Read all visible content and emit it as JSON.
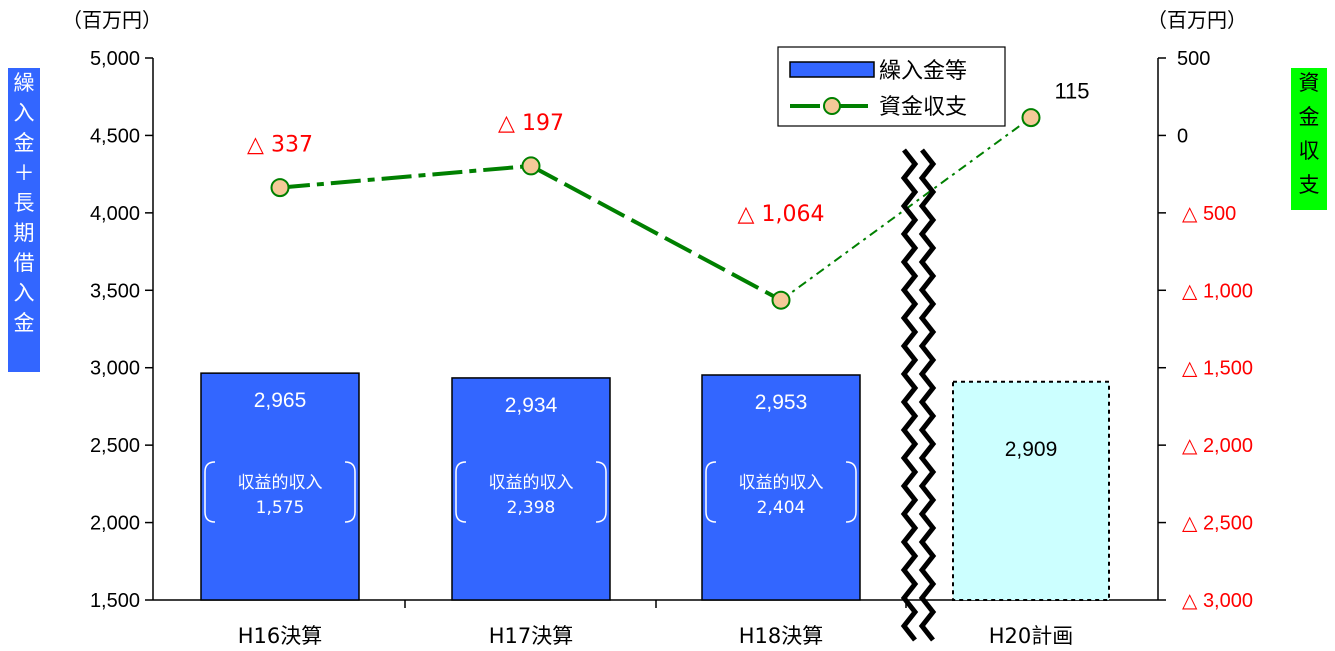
{
  "chart_data": {
    "type": "bar",
    "categories": [
      "H16決算",
      "H17決算",
      "H18決算",
      "H20計画"
    ],
    "series": [
      {
        "name": "繰入金等",
        "type": "bar",
        "axis": "left",
        "values": [
          2965,
          2934,
          2953,
          2909
        ],
        "value_labels": [
          "2,965",
          "2,934",
          "2,953",
          "2,909"
        ],
        "planned": [
          false,
          false,
          false,
          true
        ]
      },
      {
        "name": "資金収支",
        "type": "line",
        "axis": "right",
        "values": [
          -337,
          -197,
          -1064,
          115
        ],
        "value_labels": [
          "△ 337",
          "△ 197",
          "△ 1,064",
          "115"
        ]
      }
    ],
    "sub_labels": [
      {
        "title": "収益的収入",
        "value": "1,575"
      },
      {
        "title": "収益的収入",
        "value": "2,398"
      },
      {
        "title": "収益的収入",
        "value": "2,404"
      },
      null
    ],
    "left_axis": {
      "label": "繰入金＋長期借入金",
      "unit": "（百万円）",
      "ylim": [
        1500,
        5000
      ],
      "ticks": [
        {
          "value": 5000,
          "label": "5,000"
        },
        {
          "value": 4500,
          "label": "4,500"
        },
        {
          "value": 4000,
          "label": "4,000"
        },
        {
          "value": 3500,
          "label": "3,500"
        },
        {
          "value": 3000,
          "label": "3,000"
        },
        {
          "value": 2500,
          "label": "2,500"
        },
        {
          "value": 2000,
          "label": "2,000"
        },
        {
          "value": 1500,
          "label": "1,500"
        }
      ]
    },
    "right_axis": {
      "label": "資金収支",
      "unit": "（百万円）",
      "ylim": [
        -3000,
        500
      ],
      "ticks": [
        {
          "value": 500,
          "label": "500",
          "negative": false
        },
        {
          "value": 0,
          "label": "0",
          "negative": false
        },
        {
          "value": -500,
          "label": "△ 500",
          "negative": true
        },
        {
          "value": -1000,
          "label": "△ 1,000",
          "negative": true
        },
        {
          "value": -1500,
          "label": "△ 1,500",
          "negative": true
        },
        {
          "value": -2000,
          "label": "△ 2,000",
          "negative": true
        },
        {
          "value": -2500,
          "label": "△ 2,500",
          "negative": true
        },
        {
          "value": -3000,
          "label": "△ 3,000",
          "negative": true
        }
      ]
    },
    "legend": {
      "placement": "top-center-right",
      "items": [
        {
          "label": "繰入金等",
          "kind": "bar"
        },
        {
          "label": "資金収支",
          "kind": "line"
        }
      ]
    },
    "grid": false,
    "axis_break": "between H18決算 and H20計画"
  },
  "colors": {
    "bar_fill": "#3366ff",
    "plan_fill": "#ccffff",
    "line": "#008000",
    "marker_fill": "#f5c998",
    "negative_text": "#ff0000",
    "left_label_bg": "#3366ff",
    "right_label_bg": "#00ff00"
  }
}
